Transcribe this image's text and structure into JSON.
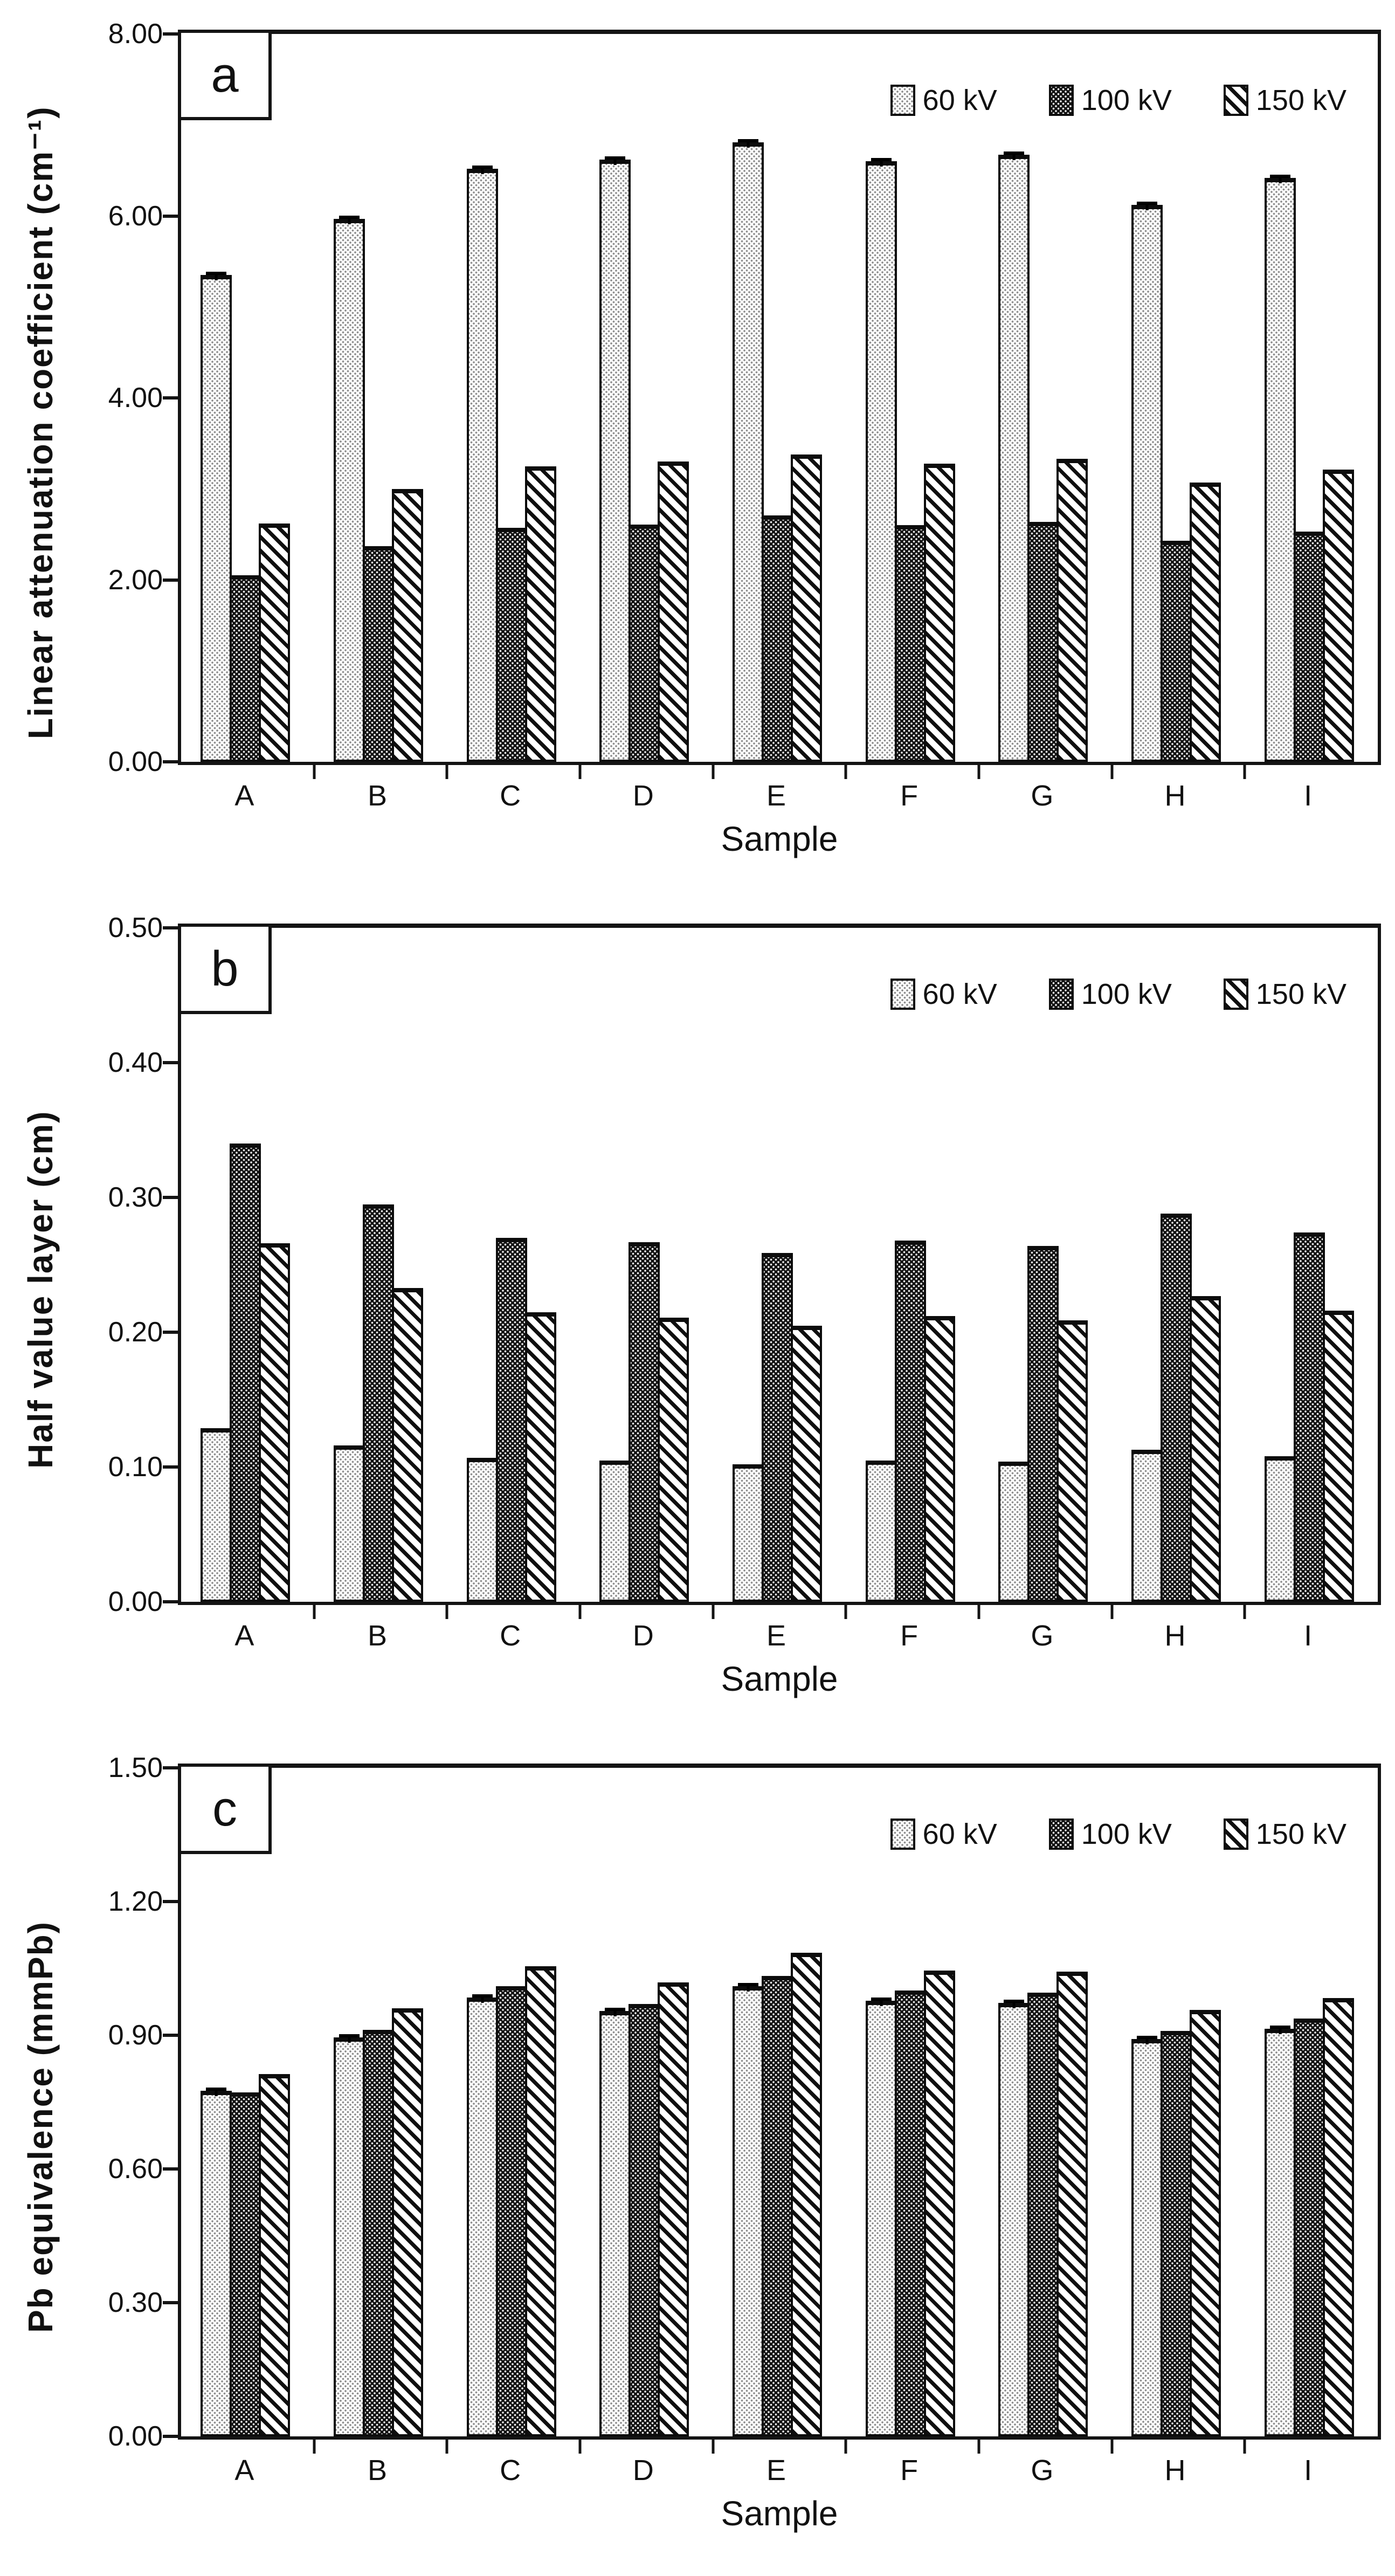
{
  "palette": {
    "ink": "#141414",
    "background": "#ffffff",
    "dot_gray": "#8f8f8f"
  },
  "chart_data": [
    {
      "type": "bar",
      "panel": "a",
      "ylabel": "Linear attenuation coefficient (cm⁻¹)",
      "xlabel": "Sample",
      "categories": [
        "A",
        "B",
        "C",
        "D",
        "E",
        "F",
        "G",
        "H",
        "I"
      ],
      "ylim": [
        0,
        8
      ],
      "yticks": [
        0,
        2,
        4,
        6,
        8
      ],
      "ytick_labels": [
        "0.00",
        "2.00",
        "4.00",
        "6.00",
        "8.00"
      ],
      "grid": false,
      "legend_position": "top-right-inside",
      "series": [
        {
          "name": "60 kV",
          "pattern": "light-dots",
          "error_caps": true,
          "values": [
            5.35,
            5.97,
            6.52,
            6.62,
            6.81,
            6.6,
            6.67,
            6.12,
            6.42
          ]
        },
        {
          "name": "100 kV",
          "pattern": "dark-dots",
          "error_caps": false,
          "values": [
            2.05,
            2.37,
            2.57,
            2.61,
            2.71,
            2.6,
            2.64,
            2.43,
            2.53
          ]
        },
        {
          "name": "150 kV",
          "pattern": "diagonal-hatch",
          "error_caps": false,
          "values": [
            2.62,
            3.0,
            3.25,
            3.3,
            3.38,
            3.28,
            3.33,
            3.07,
            3.21
          ]
        }
      ]
    },
    {
      "type": "bar",
      "panel": "b",
      "ylabel": "Half value layer (cm)",
      "xlabel": "Sample",
      "categories": [
        "A",
        "B",
        "C",
        "D",
        "E",
        "F",
        "G",
        "H",
        "I"
      ],
      "ylim": [
        0,
        0.5
      ],
      "yticks": [
        0,
        0.1,
        0.2,
        0.3,
        0.4,
        0.5
      ],
      "ytick_labels": [
        "0.00",
        "0.10",
        "0.20",
        "0.30",
        "0.40",
        "0.50"
      ],
      "grid": false,
      "legend_position": "top-right-inside",
      "series": [
        {
          "name": "60 kV",
          "pattern": "light-dots",
          "error_caps": false,
          "values": [
            0.129,
            0.116,
            0.107,
            0.105,
            0.102,
            0.105,
            0.104,
            0.113,
            0.108
          ]
        },
        {
          "name": "100 kV",
          "pattern": "dark-dots",
          "error_caps": false,
          "values": [
            0.34,
            0.295,
            0.27,
            0.267,
            0.259,
            0.268,
            0.264,
            0.288,
            0.274
          ]
        },
        {
          "name": "150 kV",
          "pattern": "diagonal-hatch",
          "error_caps": false,
          "values": [
            0.266,
            0.233,
            0.215,
            0.211,
            0.205,
            0.212,
            0.209,
            0.227,
            0.216
          ]
        }
      ]
    },
    {
      "type": "bar",
      "panel": "c",
      "ylabel": "Pb equivalence (mmPb)",
      "xlabel": "Sample",
      "categories": [
        "A",
        "B",
        "C",
        "D",
        "E",
        "F",
        "G",
        "H",
        "I"
      ],
      "ylim": [
        0,
        1.5
      ],
      "yticks": [
        0,
        0.3,
        0.6,
        0.9,
        1.2,
        1.5
      ],
      "ytick_labels": [
        "0.00",
        "0.30",
        "0.60",
        "0.90",
        "1.20",
        "1.50"
      ],
      "grid": false,
      "legend_position": "top-right-inside",
      "series": [
        {
          "name": "60 kV",
          "pattern": "light-dots",
          "error_caps": true,
          "values": [
            0.775,
            0.895,
            0.985,
            0.955,
            1.01,
            0.977,
            0.973,
            0.892,
            0.915
          ]
        },
        {
          "name": "100 kV",
          "pattern": "dark-dots",
          "error_caps": false,
          "values": [
            0.772,
            0.912,
            1.01,
            0.97,
            1.033,
            1.0,
            0.995,
            0.91,
            0.938
          ]
        },
        {
          "name": "150 kV",
          "pattern": "diagonal-hatch",
          "error_caps": false,
          "values": [
            0.813,
            0.96,
            1.055,
            1.018,
            1.085,
            1.045,
            1.043,
            0.957,
            0.983
          ]
        }
      ]
    }
  ]
}
